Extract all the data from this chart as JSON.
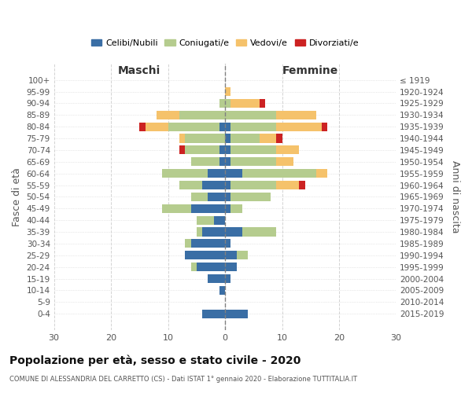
{
  "age_groups": [
    "100+",
    "95-99",
    "90-94",
    "85-89",
    "80-84",
    "75-79",
    "70-74",
    "65-69",
    "60-64",
    "55-59",
    "50-54",
    "45-49",
    "40-44",
    "35-39",
    "30-34",
    "25-29",
    "20-24",
    "15-19",
    "10-14",
    "5-9",
    "0-4"
  ],
  "birth_years": [
    "≤ 1919",
    "1920-1924",
    "1925-1929",
    "1930-1934",
    "1935-1939",
    "1940-1944",
    "1945-1949",
    "1950-1954",
    "1955-1959",
    "1960-1964",
    "1965-1969",
    "1970-1974",
    "1975-1979",
    "1980-1984",
    "1985-1989",
    "1990-1994",
    "1995-1999",
    "2000-2004",
    "2005-2009",
    "2010-2014",
    "2015-2019"
  ],
  "colors": {
    "celibi": "#3a6ea5",
    "coniugati": "#b5cc8e",
    "vedovi": "#f5c26b",
    "divorziati": "#cc2222"
  },
  "maschi": {
    "celibi": [
      0,
      0,
      0,
      0,
      1,
      0,
      1,
      1,
      3,
      4,
      3,
      6,
      2,
      4,
      6,
      7,
      5,
      3,
      1,
      0,
      4
    ],
    "coniugati": [
      0,
      0,
      1,
      8,
      9,
      7,
      6,
      5,
      8,
      4,
      3,
      5,
      3,
      1,
      1,
      0,
      1,
      0,
      0,
      0,
      0
    ],
    "vedovi": [
      0,
      0,
      0,
      4,
      4,
      1,
      0,
      0,
      0,
      0,
      0,
      0,
      0,
      0,
      0,
      0,
      0,
      0,
      0,
      0,
      0
    ],
    "divorziati": [
      0,
      0,
      0,
      0,
      1,
      0,
      1,
      0,
      0,
      0,
      0,
      0,
      0,
      0,
      0,
      0,
      0,
      0,
      0,
      0,
      0
    ]
  },
  "femmine": {
    "celibi": [
      0,
      0,
      0,
      0,
      1,
      1,
      1,
      1,
      3,
      1,
      1,
      1,
      0,
      3,
      1,
      2,
      2,
      1,
      0,
      0,
      4
    ],
    "coniugati": [
      0,
      0,
      1,
      9,
      8,
      5,
      8,
      8,
      13,
      8,
      7,
      2,
      0,
      6,
      0,
      2,
      0,
      0,
      0,
      0,
      0
    ],
    "vedovi": [
      0,
      1,
      5,
      7,
      8,
      3,
      4,
      3,
      2,
      4,
      0,
      0,
      0,
      0,
      0,
      0,
      0,
      0,
      0,
      0,
      0
    ],
    "divorziati": [
      0,
      0,
      1,
      0,
      1,
      1,
      0,
      0,
      0,
      1,
      0,
      0,
      0,
      0,
      0,
      0,
      0,
      0,
      0,
      0,
      0
    ]
  },
  "xlim": 30,
  "title": "Popolazione per età, sesso e stato civile - 2020",
  "subtitle": "COMUNE DI ALESSANDRIA DEL CARRETTO (CS) - Dati ISTAT 1° gennaio 2020 - Elaborazione TUTTITALIA.IT",
  "ylabel_left": "Fasce di età",
  "ylabel_right": "Anni di nascita",
  "xlabel_left": "Maschi",
  "xlabel_right": "Femmine"
}
